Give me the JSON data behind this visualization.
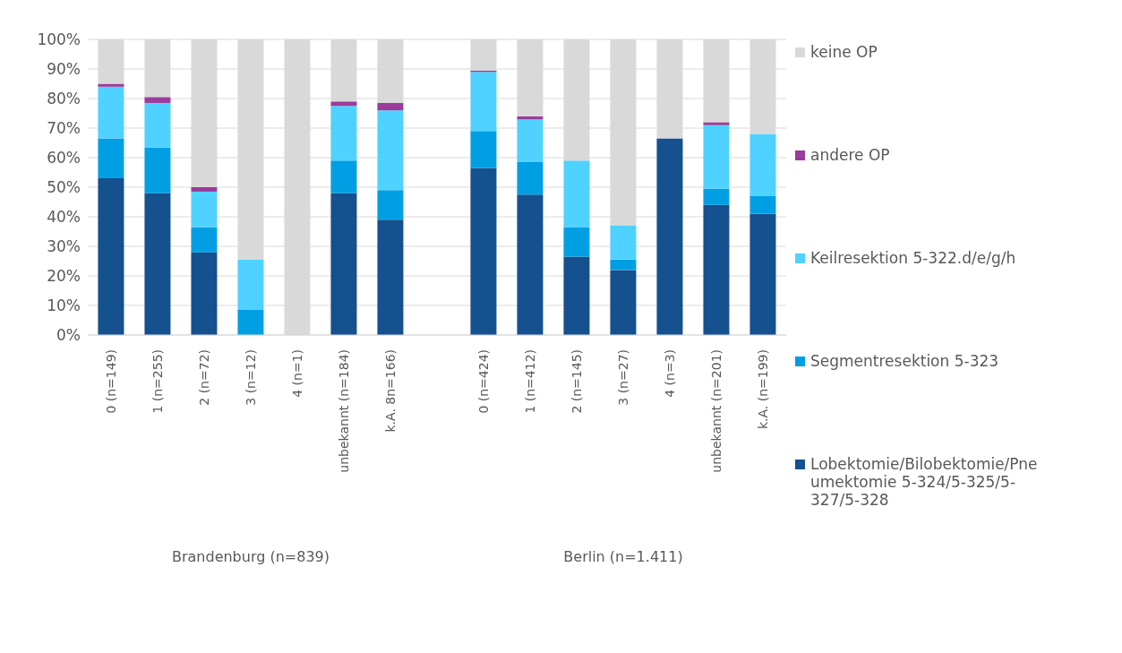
{
  "chart_data": {
    "type": "bar",
    "stacked": true,
    "grid": "y",
    "legend": "right",
    "categories": [
      "0 (n=149)",
      "1 (n=255)",
      "2 (n=72)",
      "3 (n=12)",
      "4 (n=1)",
      "unbekannt (n=184)",
      "k.A. 8n=166)",
      null,
      "0 (n=424)",
      "1 (n=412)",
      "2 (n=145)",
      "3 (n=27)",
      "4 (n=3)",
      "unbekannt (n=201)",
      "k.A. (n=199)"
    ],
    "ylim": [
      0,
      100
    ],
    "yticks": [
      {
        "value": 0,
        "label": "0%"
      },
      {
        "value": 10,
        "label": "10%"
      },
      {
        "value": 20,
        "label": "20%"
      },
      {
        "value": 30,
        "label": "30%"
      },
      {
        "value": 40,
        "label": "40%"
      },
      {
        "value": 50,
        "label": "50%"
      },
      {
        "value": 60,
        "label": "60%"
      },
      {
        "value": 70,
        "label": "70%"
      },
      {
        "value": 80,
        "label": "80%"
      },
      {
        "value": 90,
        "label": "90%"
      },
      {
        "value": 100,
        "label": "100%"
      }
    ],
    "annotations": [
      "Brandenburg (n=839)",
      "Berlin (n=1.411)"
    ],
    "series": [
      {
        "name": "Lobektomie/Bilobektomie/Pneumektomie 5-324/5-325/5-327/5-328",
        "color": "#15508f",
        "values": [
          53,
          48,
          28,
          0,
          0,
          48,
          39,
          null,
          56.5,
          47.5,
          26.5,
          22,
          66.5,
          44,
          41
        ]
      },
      {
        "name": "Segmentresektion 5-323",
        "color": "#009fe3",
        "values": [
          13.5,
          15.5,
          8.5,
          8.5,
          0,
          11,
          10,
          null,
          12.5,
          11,
          10,
          3.5,
          0,
          5.5,
          6
        ]
      },
      {
        "name": "Keilresektion 5-322.d/e/g/h",
        "color": "#4fd2ff",
        "values": [
          17.5,
          15,
          12,
          17,
          0,
          18.5,
          27,
          null,
          20,
          14.5,
          22.5,
          11.5,
          0,
          21.5,
          21
        ]
      },
      {
        "name": "andere OP",
        "color": "#9b3b9b",
        "values": [
          1,
          2,
          1.5,
          0,
          0,
          1.5,
          2.5,
          null,
          0.5,
          1,
          0,
          0,
          0,
          1,
          0
        ]
      },
      {
        "name": "keine OP",
        "color": "#d9d9d9",
        "values": [
          15,
          19.5,
          50,
          74.5,
          100,
          21,
          21.5,
          null,
          10.5,
          26,
          41,
          63,
          33.5,
          28,
          32
        ]
      }
    ]
  }
}
